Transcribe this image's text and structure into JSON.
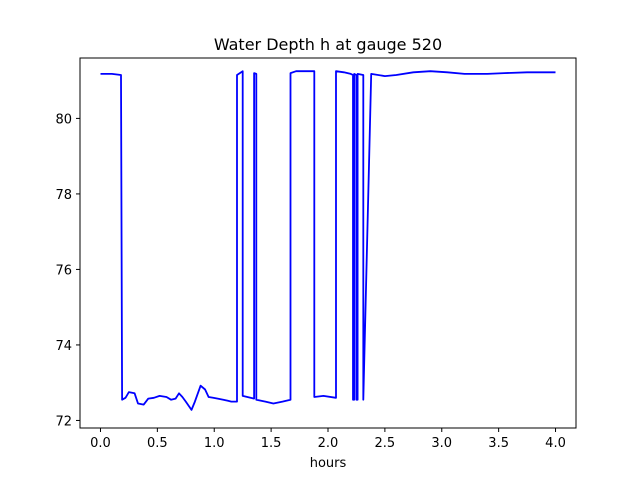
{
  "chart_data": {
    "type": "line",
    "title": "Water Depth h at gauge 520",
    "xlabel": "hours",
    "ylabel": "",
    "xlim": [
      -0.18,
      4.18
    ],
    "ylim": [
      71.8,
      81.6
    ],
    "xticks": [
      0.0,
      0.5,
      1.0,
      1.5,
      2.0,
      2.5,
      3.0,
      3.5,
      4.0
    ],
    "xtick_labels": [
      "0.0",
      "0.5",
      "1.0",
      "1.5",
      "2.0",
      "2.5",
      "3.0",
      "3.5",
      "4.0"
    ],
    "yticks": [
      72,
      74,
      76,
      78,
      80
    ],
    "ytick_labels": [
      "72",
      "74",
      "76",
      "78",
      "80"
    ],
    "grid": false,
    "series": [
      {
        "color": "#0000ff",
        "x": [
          0.0,
          0.1,
          0.18,
          0.19,
          0.22,
          0.25,
          0.3,
          0.33,
          0.38,
          0.42,
          0.47,
          0.52,
          0.58,
          0.62,
          0.66,
          0.69,
          0.72,
          0.75,
          0.8,
          0.83,
          0.88,
          0.92,
          0.95,
          0.99,
          1.03,
          1.08,
          1.12,
          1.15,
          1.19,
          1.2,
          1.2,
          1.25,
          1.25,
          1.35,
          1.35,
          1.37,
          1.37,
          1.45,
          1.52,
          1.6,
          1.67,
          1.67,
          1.72,
          1.8,
          1.88,
          1.88,
          1.96,
          2.07,
          2.07,
          2.14,
          2.2,
          2.22,
          2.22,
          2.23,
          2.23,
          2.25,
          2.25,
          2.26,
          2.26,
          2.31,
          2.31,
          2.38,
          2.5,
          2.6,
          2.75,
          2.9,
          3.05,
          3.2,
          3.4,
          3.55,
          3.75,
          4.0
        ],
        "y": [
          81.18,
          81.18,
          81.15,
          72.55,
          72.6,
          72.75,
          72.72,
          72.45,
          72.42,
          72.58,
          72.6,
          72.65,
          72.62,
          72.55,
          72.58,
          72.72,
          72.62,
          72.5,
          72.28,
          72.5,
          72.92,
          72.82,
          72.62,
          72.6,
          72.58,
          72.55,
          72.52,
          72.5,
          72.5,
          72.5,
          81.15,
          81.25,
          72.65,
          72.58,
          81.2,
          81.18,
          72.55,
          72.5,
          72.45,
          72.5,
          72.55,
          81.2,
          81.25,
          81.25,
          81.25,
          72.62,
          72.65,
          72.6,
          81.25,
          81.22,
          81.18,
          81.15,
          72.55,
          72.55,
          81.18,
          81.15,
          72.55,
          72.55,
          81.18,
          81.15,
          72.55,
          81.18,
          81.12,
          81.15,
          81.22,
          81.25,
          81.22,
          81.18,
          81.18,
          81.2,
          81.22,
          81.22
        ]
      }
    ]
  }
}
